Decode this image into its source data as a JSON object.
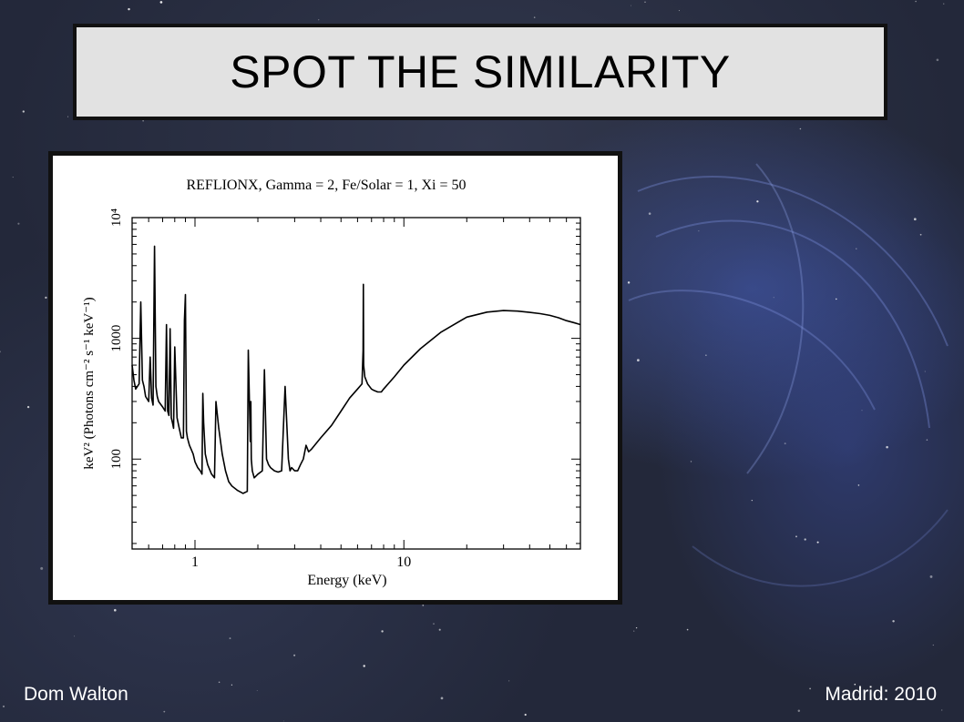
{
  "slide": {
    "title": "SPOT THE SIMILARITY",
    "footer_left": "Dom Walton",
    "footer_right": "Madrid: 2010",
    "background_color": "#23283a"
  },
  "chart_data": {
    "type": "line",
    "title": "REFLIONX, Gamma = 2, Fe/Solar = 1, Xi = 50",
    "xlabel": "Energy (keV)",
    "ylabel": "keV² (Photons cm⁻² s⁻¹ keV⁻¹)",
    "x_scale": "log",
    "y_scale": "log",
    "xlim": [
      0.5,
      70
    ],
    "ylim": [
      18,
      10000
    ],
    "x_ticks": [
      {
        "value": 1,
        "label": "1"
      },
      {
        "value": 10,
        "label": "10"
      }
    ],
    "y_ticks": [
      {
        "value": 100,
        "label": "100"
      },
      {
        "value": 1000,
        "label": "1000"
      },
      {
        "value": 10000,
        "label": "10⁴"
      }
    ],
    "grid": false,
    "series": [
      {
        "color": "#000000",
        "x": [
          0.5,
          0.51,
          0.52,
          0.53,
          0.54,
          0.55,
          0.56,
          0.57,
          0.58,
          0.6,
          0.61,
          0.62,
          0.63,
          0.64,
          0.65,
          0.66,
          0.67,
          0.7,
          0.72,
          0.73,
          0.74,
          0.75,
          0.76,
          0.77,
          0.78,
          0.79,
          0.8,
          0.82,
          0.84,
          0.86,
          0.88,
          0.89,
          0.9,
          0.91,
          0.92,
          0.94,
          0.96,
          0.98,
          1.0,
          1.03,
          1.06,
          1.08,
          1.09,
          1.1,
          1.12,
          1.15,
          1.2,
          1.24,
          1.25,
          1.26,
          1.3,
          1.35,
          1.4,
          1.45,
          1.5,
          1.6,
          1.7,
          1.78,
          1.8,
          1.84,
          1.85,
          1.86,
          1.88,
          1.92,
          2.0,
          2.1,
          2.15,
          2.2,
          2.25,
          2.3,
          2.4,
          2.5,
          2.6,
          2.7,
          2.8,
          2.85,
          2.9,
          3.0,
          3.1,
          3.2,
          3.3,
          3.4,
          3.5,
          3.6,
          4.0,
          4.5,
          5.0,
          5.5,
          6.0,
          6.3,
          6.38,
          6.4,
          6.42,
          6.5,
          6.7,
          7.0,
          7.2,
          7.5,
          7.8,
          8.0,
          9.0,
          10.0,
          12.0,
          15.0,
          20.0,
          25.0,
          30.0,
          35.0,
          40.0,
          45.0,
          50.0,
          55.0,
          60.0,
          65.0,
          70.0
        ],
        "y": [
          600,
          450,
          380,
          400,
          420,
          2000,
          450,
          400,
          330,
          300,
          700,
          320,
          280,
          5800,
          400,
          330,
          300,
          270,
          250,
          1300,
          250,
          230,
          1200,
          220,
          200,
          180,
          850,
          220,
          180,
          150,
          150,
          1400,
          2300,
          170,
          150,
          130,
          120,
          110,
          95,
          85,
          80,
          75,
          350,
          200,
          110,
          90,
          75,
          70,
          140,
          300,
          180,
          110,
          80,
          65,
          60,
          55,
          52,
          54,
          800,
          140,
          300,
          100,
          80,
          70,
          75,
          80,
          550,
          100,
          90,
          85,
          80,
          78,
          80,
          400,
          100,
          80,
          85,
          80,
          80,
          90,
          100,
          130,
          115,
          120,
          150,
          190,
          250,
          320,
          380,
          420,
          800,
          2800,
          600,
          480,
          420,
          380,
          370,
          360,
          360,
          380,
          480,
          600,
          820,
          1120,
          1500,
          1650,
          1700,
          1680,
          1640,
          1600,
          1550,
          1480,
          1400,
          1350,
          1300
        ]
      }
    ]
  }
}
